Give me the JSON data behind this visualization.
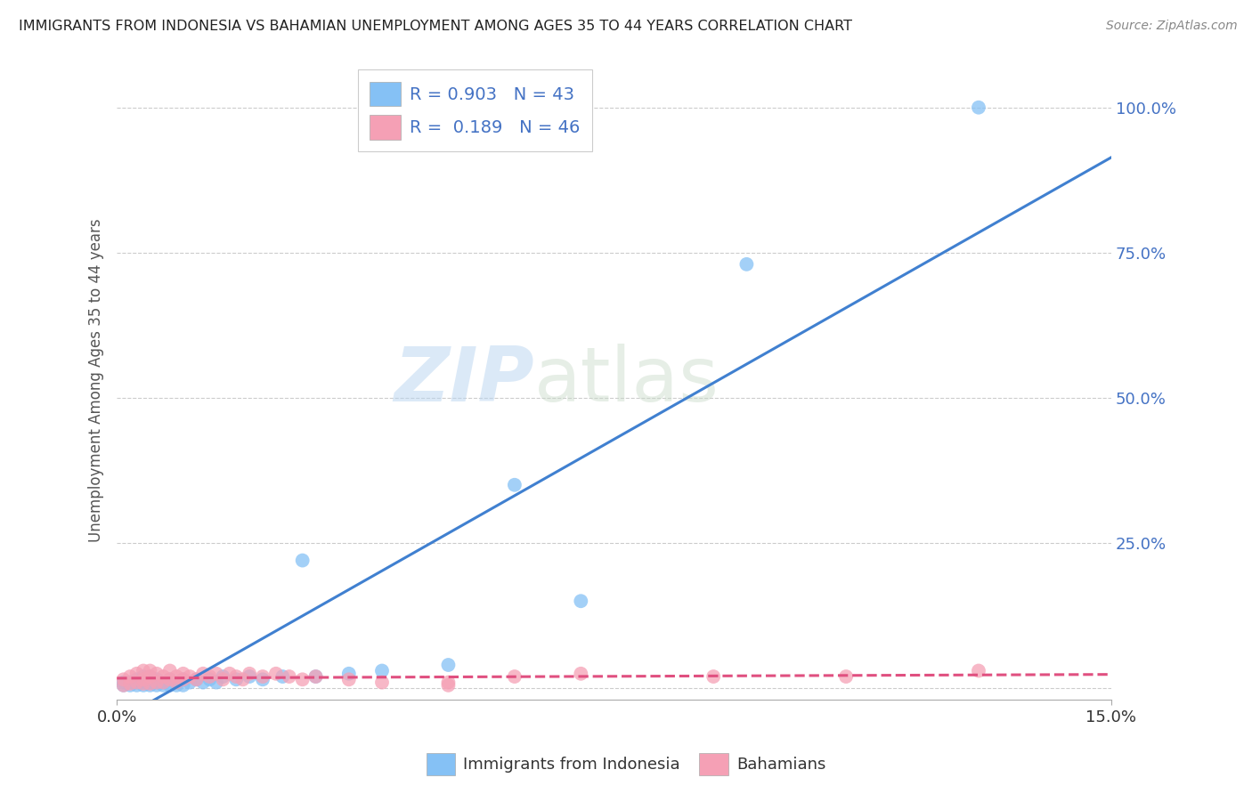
{
  "title": "IMMIGRANTS FROM INDONESIA VS BAHAMIAN UNEMPLOYMENT AMONG AGES 35 TO 44 YEARS CORRELATION CHART",
  "source": "Source: ZipAtlas.com",
  "ylabel": "Unemployment Among Ages 35 to 44 years",
  "xlim": [
    0.0,
    0.15
  ],
  "ylim": [
    -0.02,
    1.08
  ],
  "x_ticks": [
    0.0,
    0.15
  ],
  "x_tick_labels": [
    "0.0%",
    "15.0%"
  ],
  "y_ticks": [
    0.0,
    0.25,
    0.5,
    0.75,
    1.0
  ],
  "y_tick_labels": [
    "",
    "25.0%",
    "50.0%",
    "75.0%",
    "100.0%"
  ],
  "blue_color": "#85C1F5",
  "blue_line_color": "#4080D0",
  "pink_color": "#F5A0B5",
  "pink_line_color": "#E05080",
  "r_blue": 0.903,
  "n_blue": 43,
  "r_pink": 0.189,
  "n_pink": 46,
  "watermark_zip": "ZIP",
  "watermark_atlas": "atlas",
  "background_color": "#ffffff",
  "grid_color": "#cccccc",
  "legend_label_blue": "Immigrants from Indonesia",
  "legend_label_pink": "Bahamians",
  "blue_scatter_x": [
    0.001,
    0.001,
    0.002,
    0.002,
    0.003,
    0.003,
    0.003,
    0.004,
    0.004,
    0.004,
    0.005,
    0.005,
    0.005,
    0.006,
    0.006,
    0.006,
    0.007,
    0.007,
    0.008,
    0.008,
    0.009,
    0.009,
    0.01,
    0.01,
    0.011,
    0.012,
    0.013,
    0.014,
    0.015,
    0.016,
    0.018,
    0.02,
    0.022,
    0.025,
    0.028,
    0.03,
    0.035,
    0.04,
    0.05,
    0.06,
    0.07,
    0.095,
    0.13
  ],
  "blue_scatter_y": [
    0.005,
    0.01,
    0.005,
    0.01,
    0.005,
    0.01,
    0.015,
    0.005,
    0.01,
    0.02,
    0.005,
    0.01,
    0.02,
    0.005,
    0.01,
    0.015,
    0.005,
    0.01,
    0.005,
    0.015,
    0.005,
    0.01,
    0.005,
    0.015,
    0.01,
    0.015,
    0.01,
    0.015,
    0.01,
    0.02,
    0.015,
    0.02,
    0.015,
    0.02,
    0.22,
    0.02,
    0.025,
    0.03,
    0.04,
    0.35,
    0.15,
    0.73,
    1.0
  ],
  "pink_scatter_x": [
    0.001,
    0.001,
    0.002,
    0.002,
    0.003,
    0.003,
    0.004,
    0.004,
    0.004,
    0.005,
    0.005,
    0.005,
    0.006,
    0.006,
    0.007,
    0.007,
    0.008,
    0.008,
    0.009,
    0.009,
    0.01,
    0.01,
    0.011,
    0.012,
    0.013,
    0.014,
    0.015,
    0.016,
    0.017,
    0.018,
    0.019,
    0.02,
    0.022,
    0.024,
    0.026,
    0.028,
    0.03,
    0.035,
    0.04,
    0.05,
    0.06,
    0.07,
    0.09,
    0.11,
    0.13,
    0.05
  ],
  "pink_scatter_y": [
    0.005,
    0.015,
    0.008,
    0.02,
    0.01,
    0.025,
    0.008,
    0.015,
    0.03,
    0.008,
    0.02,
    0.03,
    0.01,
    0.025,
    0.01,
    0.02,
    0.015,
    0.03,
    0.01,
    0.02,
    0.015,
    0.025,
    0.02,
    0.015,
    0.025,
    0.02,
    0.025,
    0.015,
    0.025,
    0.02,
    0.015,
    0.025,
    0.02,
    0.025,
    0.02,
    0.015,
    0.02,
    0.015,
    0.01,
    0.01,
    0.02,
    0.025,
    0.02,
    0.02,
    0.03,
    0.005
  ]
}
